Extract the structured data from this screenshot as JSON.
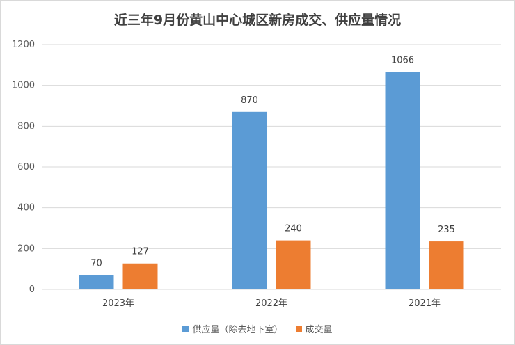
{
  "chart_data": {
    "type": "bar",
    "title": "近三年9月份黄山中心城区新房成交、供应量情况",
    "categories": [
      "2023年",
      "2022年",
      "2021年"
    ],
    "series": [
      {
        "name": "供应量（除去地下室）",
        "values": [
          70,
          870,
          1066
        ],
        "color": "#5b9bd5"
      },
      {
        "name": "成交量",
        "values": [
          127,
          240,
          235
        ],
        "color": "#ed7d31"
      }
    ],
    "ylim": [
      0,
      1200
    ],
    "yticks": [
      0,
      200,
      400,
      600,
      800,
      1000,
      1200
    ],
    "grid": true,
    "legend_position": "bottom"
  }
}
